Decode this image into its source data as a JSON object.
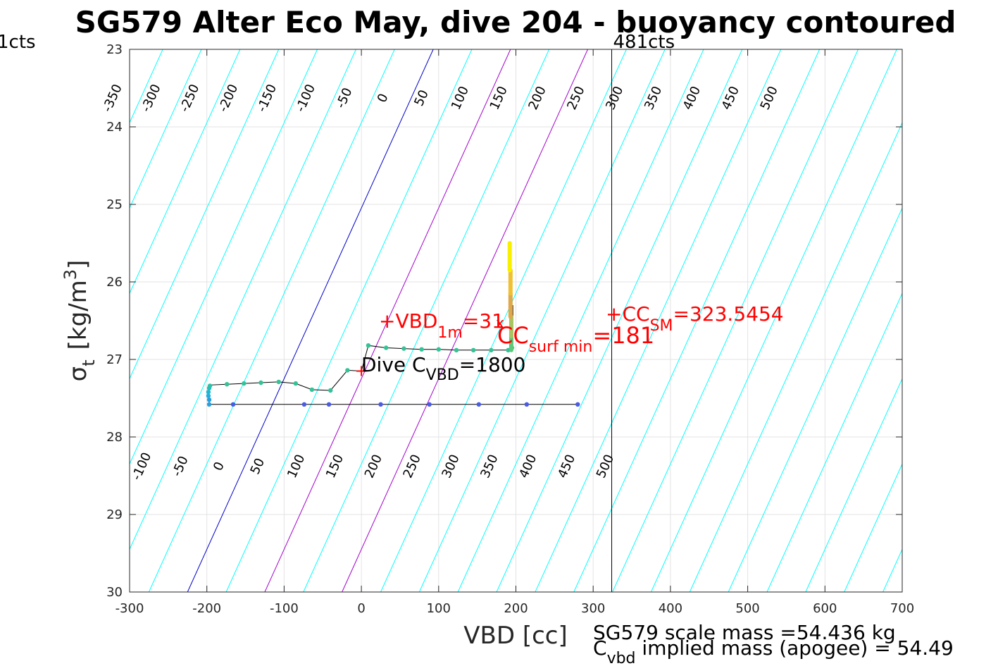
{
  "chart_data": {
    "type": "line",
    "title": "SG579 Alter Eco May, dive 204 - buoyancy contoured",
    "xlabel": "VBD [cc]",
    "ylabel": "σ_t [kg/m^3]",
    "ylabel_parts": {
      "sym": "σ",
      "sub": "t",
      "main": "[kg/m",
      "sup": "3",
      "tail": "]"
    },
    "xlim": [
      -300,
      700
    ],
    "ylim": [
      30,
      23
    ],
    "y_reversed": true,
    "xticks": [
      -300,
      -200,
      -100,
      0,
      100,
      200,
      300,
      400,
      500,
      600,
      700
    ],
    "xtick_labels": [
      "-300",
      "-200",
      "-100",
      "0",
      "100",
      "200",
      "300",
      "400",
      "500",
      "600",
      "700"
    ],
    "yticks": [
      23,
      24,
      25,
      26,
      27,
      28,
      29,
      30
    ],
    "ytick_labels": [
      "23",
      "24",
      "25",
      "26",
      "27",
      "28",
      "29",
      "30"
    ],
    "grid": true,
    "contours": {
      "density_slope": 0.00191,
      "upper_anchor_vbd": 0,
      "upper_anchor_sigma": 23.61,
      "lower_anchor_vbd": 0,
      "lower_anchor_sigma": 28.44,
      "upper_levels": [
        -350,
        -300,
        -250,
        -200,
        -150,
        -100,
        -50,
        0,
        50,
        100,
        150,
        200,
        250,
        300,
        350,
        400,
        450,
        500
      ],
      "lower_levels": [
        -100,
        -50,
        0,
        50,
        100,
        150,
        200,
        250,
        300,
        350,
        400,
        450,
        500
      ],
      "upper_labels": [
        "-350",
        "-300",
        "-250",
        "-200",
        "-150",
        "-100",
        "-50",
        "0",
        "50",
        "100",
        "150",
        "200",
        "250",
        "300",
        "350",
        "400",
        "450",
        "500"
      ],
      "lower_labels": [
        "-100",
        "-50",
        "0",
        "50",
        "100",
        "150",
        "200",
        "250",
        "300",
        "350",
        "400",
        "450",
        "500"
      ],
      "line_color_default": "#00ffff",
      "line_color_zero": "#0000cc",
      "line_color_highlight": "#cc00cc",
      "highlight_lines": [
        {
          "vbd_at_30": -125,
          "vbd_at_23": 193
        },
        {
          "vbd_at_30": -25,
          "vbd_at_23": 293
        }
      ]
    },
    "vertical_line": {
      "vbd": 324,
      "label": "481cts",
      "color": "#000000"
    },
    "corner_left_label": "1cts",
    "series": [
      {
        "kind": "profile-line",
        "color": "#000000",
        "x": [
          280,
          214,
          152,
          88,
          25,
          -42,
          -74,
          -166,
          -197,
          -197,
          -198,
          -197,
          -196,
          -174,
          -152,
          -130,
          -107,
          -85,
          -64,
          -40,
          -18,
          0,
          9,
          32,
          55,
          78,
          100,
          123,
          145,
          168,
          190,
          195,
          196,
          196,
          196
        ],
        "y": [
          27.58,
          27.58,
          27.58,
          27.58,
          27.58,
          27.58,
          27.58,
          27.58,
          27.58,
          27.5,
          27.42,
          27.36,
          27.33,
          27.32,
          27.31,
          27.3,
          27.29,
          27.31,
          27.39,
          27.4,
          27.14,
          27.15,
          26.82,
          26.85,
          26.86,
          26.87,
          26.87,
          26.88,
          26.88,
          26.88,
          26.88,
          26.85,
          26.7,
          26.5,
          26.3
        ]
      },
      {
        "kind": "dots",
        "points": [
          {
            "x": 280,
            "y": 27.58,
            "color": "#4a5be6"
          },
          {
            "x": 214,
            "y": 27.58,
            "color": "#4a5be6"
          },
          {
            "x": 152,
            "y": 27.58,
            "color": "#4a5be6"
          },
          {
            "x": 88,
            "y": 27.58,
            "color": "#4a5be6"
          },
          {
            "x": 25,
            "y": 27.58,
            "color": "#4a5be6"
          },
          {
            "x": -42,
            "y": 27.58,
            "color": "#4a5be6"
          },
          {
            "x": -74,
            "y": 27.58,
            "color": "#4a5be6"
          },
          {
            "x": -166,
            "y": 27.58,
            "color": "#4a5be6"
          },
          {
            "x": -197,
            "y": 27.58,
            "color": "#2a9fde"
          },
          {
            "x": -197,
            "y": 27.52,
            "color": "#2a9fde"
          },
          {
            "x": -198,
            "y": 27.47,
            "color": "#22aee0"
          },
          {
            "x": -198,
            "y": 27.42,
            "color": "#1fb8d0"
          },
          {
            "x": -197,
            "y": 27.37,
            "color": "#22bcc0"
          },
          {
            "x": -196,
            "y": 27.34,
            "color": "#2ec0a8"
          },
          {
            "x": -174,
            "y": 27.32,
            "color": "#34c296"
          },
          {
            "x": -152,
            "y": 27.31,
            "color": "#34c296"
          },
          {
            "x": -130,
            "y": 27.3,
            "color": "#34c296"
          },
          {
            "x": -107,
            "y": 27.29,
            "color": "#34c296"
          },
          {
            "x": -85,
            "y": 27.31,
            "color": "#34c296"
          },
          {
            "x": -64,
            "y": 27.39,
            "color": "#34c296"
          },
          {
            "x": -40,
            "y": 27.4,
            "color": "#34c296"
          },
          {
            "x": -18,
            "y": 27.14,
            "color": "#34c296"
          },
          {
            "x": 9,
            "y": 26.82,
            "color": "#34c296"
          },
          {
            "x": 32,
            "y": 26.85,
            "color": "#34c296"
          },
          {
            "x": 55,
            "y": 26.86,
            "color": "#34c296"
          },
          {
            "x": 78,
            "y": 26.87,
            "color": "#34c296"
          },
          {
            "x": 100,
            "y": 26.87,
            "color": "#34c296"
          },
          {
            "x": 123,
            "y": 26.88,
            "color": "#34c296"
          },
          {
            "x": 145,
            "y": 26.88,
            "color": "#34c296"
          },
          {
            "x": 168,
            "y": 26.88,
            "color": "#34c296"
          },
          {
            "x": 190,
            "y": 26.88,
            "color": "#34c296"
          },
          {
            "x": 195,
            "y": 26.85,
            "color": "#4cc480"
          }
        ]
      },
      {
        "kind": "thick-segments",
        "segments": [
          {
            "x1": 194,
            "y1": 26.88,
            "x2": 194,
            "y2": 26.7,
            "color": "#5cc878"
          },
          {
            "x1": 194,
            "y1": 26.7,
            "x2": 194,
            "y2": 26.45,
            "color": "#a8c460"
          },
          {
            "x1": 193,
            "y1": 26.45,
            "x2": 193,
            "y2": 26.15,
            "color": "#e0a848"
          },
          {
            "x1": 193,
            "y1": 26.15,
            "x2": 193,
            "y2": 25.85,
            "color": "#f0c030"
          },
          {
            "x1": 192,
            "y1": 25.85,
            "x2": 192,
            "y2": 25.5,
            "color": "#f8f000"
          }
        ]
      }
    ],
    "markers": [
      {
        "x": 0,
        "y": 27.15,
        "symbol": "+",
        "color": "#ff0000"
      }
    ],
    "annotations": {
      "vbd_1m": {
        "prefix": "+VBD",
        "sub": "1m",
        "suffix": "=31",
        "x": 31,
        "y": 26.68,
        "color": "#ff0000"
      },
      "cc_surf": {
        "main": "CC",
        "sub": "surf min",
        "suffix": "=181",
        "mark": "x",
        "x": 181,
        "y": 26.72,
        "color": "#ff0000"
      },
      "cc_sm": {
        "prefix": "+CC",
        "sub": "SM",
        "suffix": "=323.5454",
        "x": 323.5454,
        "y": 26.5,
        "color": "#ff0000"
      },
      "dive_cvbd": {
        "prefix": "Dive C",
        "sub": "VBD",
        "suffix": "=1800",
        "color": "#000000"
      }
    },
    "footer": {
      "line1": "SG579 scale mass =54.436 kg",
      "line2_main": "C",
      "line2_sub": "vbd",
      "line2_tail": " implied mass (apogee) = 54.49"
    }
  }
}
